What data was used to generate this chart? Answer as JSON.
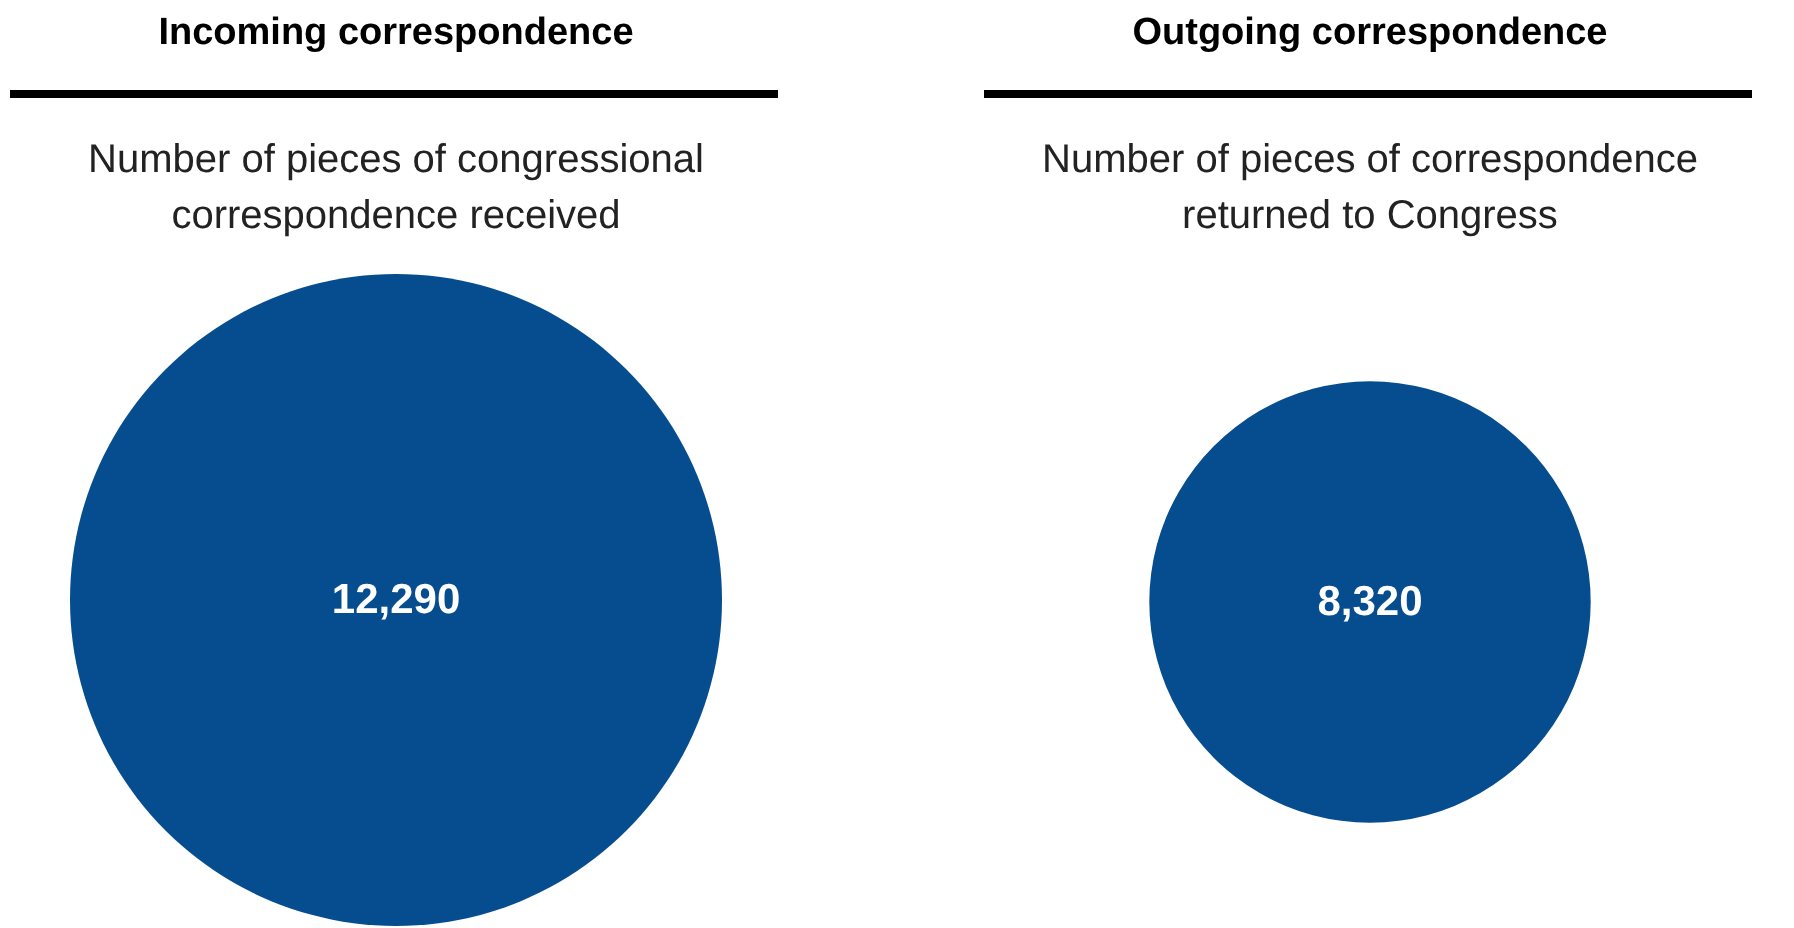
{
  "chart_data": [
    {
      "type": "other",
      "title": "Incoming correspondence",
      "subtitle": "Number of pieces of congressional correspondence received",
      "values": [
        12290
      ],
      "value_labels": [
        "12,290"
      ],
      "color": "#054d8f"
    },
    {
      "type": "other",
      "title": "Outgoing correspondence",
      "subtitle": "Number of pieces of correspondence returned to Congress",
      "values": [
        8320
      ],
      "value_labels": [
        "8,320"
      ],
      "color": "#054d8f"
    }
  ]
}
